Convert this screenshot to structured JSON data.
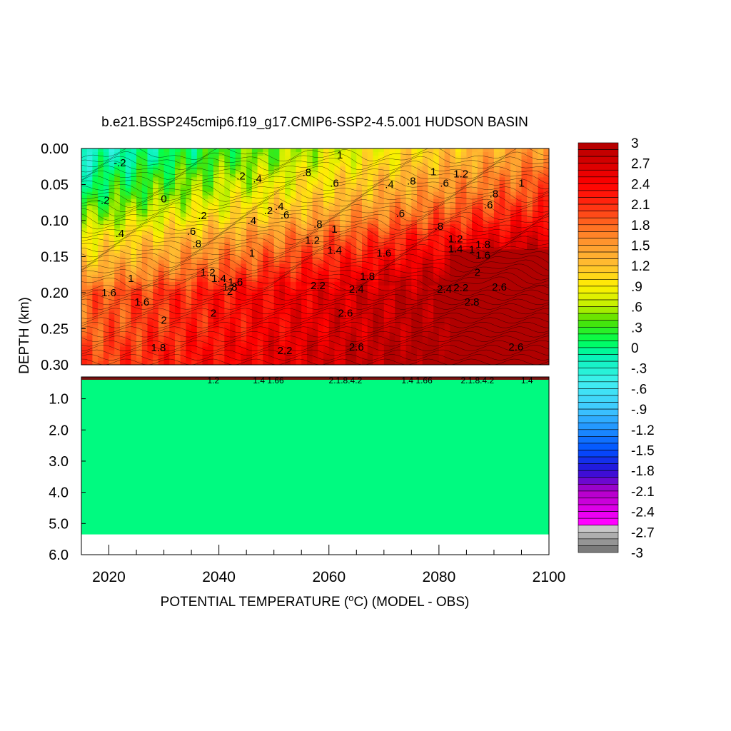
{
  "chart_data": {
    "type": "heatmap",
    "title": "b.e21.BSSP245cmip6.f19_g17.CMIP6-SSP2-4.5.001 HUDSON BASIN",
    "xlabel": "POTENTIAL TEMPERATURE (°C) (MODEL - OBS)",
    "xlabel_main": "POTENTIAL TEMPERATURE (",
    "xlabel_sup": "o",
    "xlabel_tail": "C) (MODEL - OBS)",
    "ylabel": "DEPTH (km)",
    "xlim": [
      2015,
      2100
    ],
    "x_ticks": [
      "2020",
      "2040",
      "2060",
      "2080",
      "2100"
    ],
    "upper_panel": {
      "ylim": [
        0.0,
        0.3
      ],
      "y_ticks": [
        "0.00",
        "0.05",
        "0.10",
        "0.15",
        "0.20",
        "0.25",
        "0.30"
      ]
    },
    "lower_panel": {
      "ylim": [
        0.3,
        6.0
      ],
      "y_ticks": [
        "1.0",
        "2.0",
        "3.0",
        "4.0",
        "5.0",
        "6.0"
      ],
      "data_bottom_depth": 5.35,
      "fill_value": 0.0
    },
    "colorbar": {
      "min": -3,
      "max": 3,
      "step": 0.1,
      "tick_labels": [
        "3",
        "2.7",
        "2.4",
        "2.1",
        "1.8",
        "1.5",
        "1.2",
        ".9",
        ".6",
        ".3",
        "0",
        "-.3",
        "-.6",
        "-.9",
        "-1.2",
        "-1.5",
        "-1.8",
        "-2.1",
        "-2.4",
        "-2.7",
        "-3"
      ]
    },
    "depth_profile": {
      "depths": [
        0.0,
        0.02,
        0.04,
        0.06,
        0.08,
        0.1,
        0.12,
        0.14,
        0.16,
        0.18,
        0.19,
        0.2,
        0.22,
        0.25,
        0.28,
        0.3
      ],
      "values": [
        -0.3,
        -0.2,
        0.0,
        0.1,
        0.3,
        0.5,
        0.8,
        1.0,
        1.2,
        1.4,
        1.6,
        1.8,
        1.8,
        1.8,
        1.9,
        1.9
      ]
    },
    "warming_trend_per_year": 0.01,
    "contour_labels": [
      {
        "text": "-.2",
        "x": 2022,
        "d": 0.02
      },
      {
        "text": "-.2",
        "x": 2019,
        "d": 0.072
      },
      {
        "text": "0",
        "x": 2030,
        "d": 0.07
      },
      {
        "text": ".2",
        "x": 2037,
        "d": 0.093
      },
      {
        "text": ".4",
        "x": 2022,
        "d": 0.118
      },
      {
        "text": ".6",
        "x": 2035,
        "d": 0.115
      },
      {
        "text": ".8",
        "x": 2036,
        "d": 0.132
      },
      {
        "text": "1",
        "x": 2046,
        "d": 0.145
      },
      {
        "text": "1",
        "x": 2024,
        "d": 0.18
      },
      {
        "text": "1.2",
        "x": 2038,
        "d": 0.172
      },
      {
        "text": "1.4",
        "x": 2040,
        "d": 0.18
      },
      {
        "text": "1.6",
        "x": 2043,
        "d": 0.185
      },
      {
        "text": "1.6",
        "x": 2020,
        "d": 0.2
      },
      {
        "text": "1.6",
        "x": 2026,
        "d": 0.213
      },
      {
        "text": "1.8",
        "x": 2042,
        "d": 0.192
      },
      {
        "text": "1.8",
        "x": 2029,
        "d": 0.276
      },
      {
        "text": "2",
        "x": 2030,
        "d": 0.238
      },
      {
        "text": "2",
        "x": 2042,
        "d": 0.198
      },
      {
        "text": "2",
        "x": 2039,
        "d": 0.228
      },
      {
        "text": "2.2",
        "x": 2058,
        "d": 0.19
      },
      {
        "text": "2.2",
        "x": 2052,
        "d": 0.28
      },
      {
        "text": "2.4",
        "x": 2065,
        "d": 0.195
      },
      {
        "text": "2.6",
        "x": 2063,
        "d": 0.228
      },
      {
        "text": "2.6",
        "x": 2065,
        "d": 0.275
      },
      {
        "text": "2.6",
        "x": 2094,
        "d": 0.275
      },
      {
        "text": ".2",
        "x": 2044,
        "d": 0.038
      },
      {
        "text": ".4",
        "x": 2047,
        "d": 0.042
      },
      {
        "text": ".8",
        "x": 2056,
        "d": 0.033
      },
      {
        "text": ".6",
        "x": 2061,
        "d": 0.048
      },
      {
        "text": ".4",
        "x": 2051,
        "d": 0.08
      },
      {
        "text": ".6",
        "x": 2052,
        "d": 0.092
      },
      {
        "text": ".2",
        "x": 2049,
        "d": 0.086
      },
      {
        "text": ".4",
        "x": 2046,
        "d": 0.1
      },
      {
        "text": ".8",
        "x": 2058,
        "d": 0.105
      },
      {
        "text": "1",
        "x": 2061,
        "d": 0.112
      },
      {
        "text": "1.2",
        "x": 2057,
        "d": 0.127
      },
      {
        "text": "1.4",
        "x": 2061,
        "d": 0.141
      },
      {
        "text": "1.6",
        "x": 2070,
        "d": 0.145
      },
      {
        "text": "1.8",
        "x": 2067,
        "d": 0.177
      },
      {
        "text": "1",
        "x": 2062,
        "d": 0.009
      },
      {
        "text": ".4",
        "x": 2071,
        "d": 0.05
      },
      {
        "text": ".6",
        "x": 2073,
        "d": 0.09
      },
      {
        "text": ".8",
        "x": 2075,
        "d": 0.045
      },
      {
        "text": "1",
        "x": 2079,
        "d": 0.032
      },
      {
        "text": ".6",
        "x": 2081,
        "d": 0.048
      },
      {
        "text": "1.2",
        "x": 2084,
        "d": 0.035
      },
      {
        "text": ".8",
        "x": 2080,
        "d": 0.108
      },
      {
        "text": "1.2",
        "x": 2083,
        "d": 0.125
      },
      {
        "text": "1",
        "x": 2086,
        "d": 0.14
      },
      {
        "text": "1.4",
        "x": 2083,
        "d": 0.139
      },
      {
        "text": "1.6",
        "x": 2088,
        "d": 0.148
      },
      {
        "text": "1.8",
        "x": 2088,
        "d": 0.133
      },
      {
        "text": "2",
        "x": 2087,
        "d": 0.172
      },
      {
        "text": ".8",
        "x": 2090,
        "d": 0.063
      },
      {
        "text": ".6",
        "x": 2089,
        "d": 0.078
      },
      {
        "text": "1",
        "x": 2095,
        "d": 0.048
      },
      {
        "text": "2.4",
        "x": 2081,
        "d": 0.195
      },
      {
        "text": "2.2",
        "x": 2084,
        "d": 0.193
      },
      {
        "text": "2.6",
        "x": 2091,
        "d": 0.192
      },
      {
        "text": "2.8",
        "x": 2086,
        "d": 0.213
      }
    ],
    "lower_panel_labels": [
      {
        "text": "1.2",
        "x": 2039
      },
      {
        "text": "1.4 1.66",
        "x": 2049
      },
      {
        "text": "2.1.8.4.2",
        "x": 2063
      },
      {
        "text": "1.4 1.66",
        "x": 2076
      },
      {
        "text": "2.1.8.4.2",
        "x": 2087
      },
      {
        "text": "1.4",
        "x": 2096
      }
    ]
  }
}
